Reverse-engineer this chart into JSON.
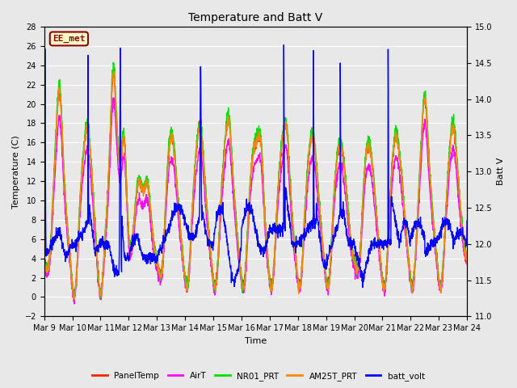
{
  "title": "Temperature and Batt V",
  "xlabel": "Time",
  "ylabel_left": "Temperature (C)",
  "ylabel_right": "Batt V",
  "ylim_left": [
    -2,
    28
  ],
  "ylim_right": [
    11.0,
    15.0
  ],
  "yticks_left": [
    -2,
    0,
    2,
    4,
    6,
    8,
    10,
    12,
    14,
    16,
    18,
    20,
    22,
    24,
    26,
    28
  ],
  "yticks_right": [
    11.0,
    11.5,
    12.0,
    12.5,
    13.0,
    13.5,
    14.0,
    14.5,
    15.0
  ],
  "xlim": [
    0,
    15
  ],
  "xtick_labels": [
    "Mar 9",
    "Mar 10",
    "Mar 11",
    "Mar 12",
    "Mar 13",
    "Mar 14",
    "Mar 15",
    "Mar 16",
    "Mar 17",
    "Mar 18",
    "Mar 19",
    "Mar 20",
    "Mar 21",
    "Mar 22",
    "Mar 23",
    "Mar 24"
  ],
  "xtick_positions": [
    0,
    1,
    2,
    3,
    4,
    5,
    6,
    7,
    8,
    9,
    10,
    11,
    12,
    13,
    14,
    15
  ],
  "annotation_text": "EE_met",
  "annotation_fg": "#8B0000",
  "annotation_bg": "#ffffcc",
  "background_color": "#e8e8e8",
  "plot_bg_color": "#e8e8e8",
  "grid_color": "#ffffff",
  "series_PanelTemp_color": "#ff2200",
  "series_AirT_color": "#ff00ff",
  "series_NR01_PRT_color": "#00dd00",
  "series_AM25T_PRT_color": "#ff8800",
  "series_batt_volt_color": "#0000ff",
  "lw_temp": 1.0,
  "lw_batt": 1.0,
  "legend_entries": [
    "PanelTemp",
    "AirT",
    "NR01_PRT",
    "AM25T_PRT",
    "batt_volt"
  ],
  "legend_colors": [
    "#ff2200",
    "#ff00ff",
    "#00dd00",
    "#ff8800",
    "#0000ff"
  ],
  "title_fontsize": 10,
  "axis_fontsize": 8,
  "tick_fontsize": 7
}
